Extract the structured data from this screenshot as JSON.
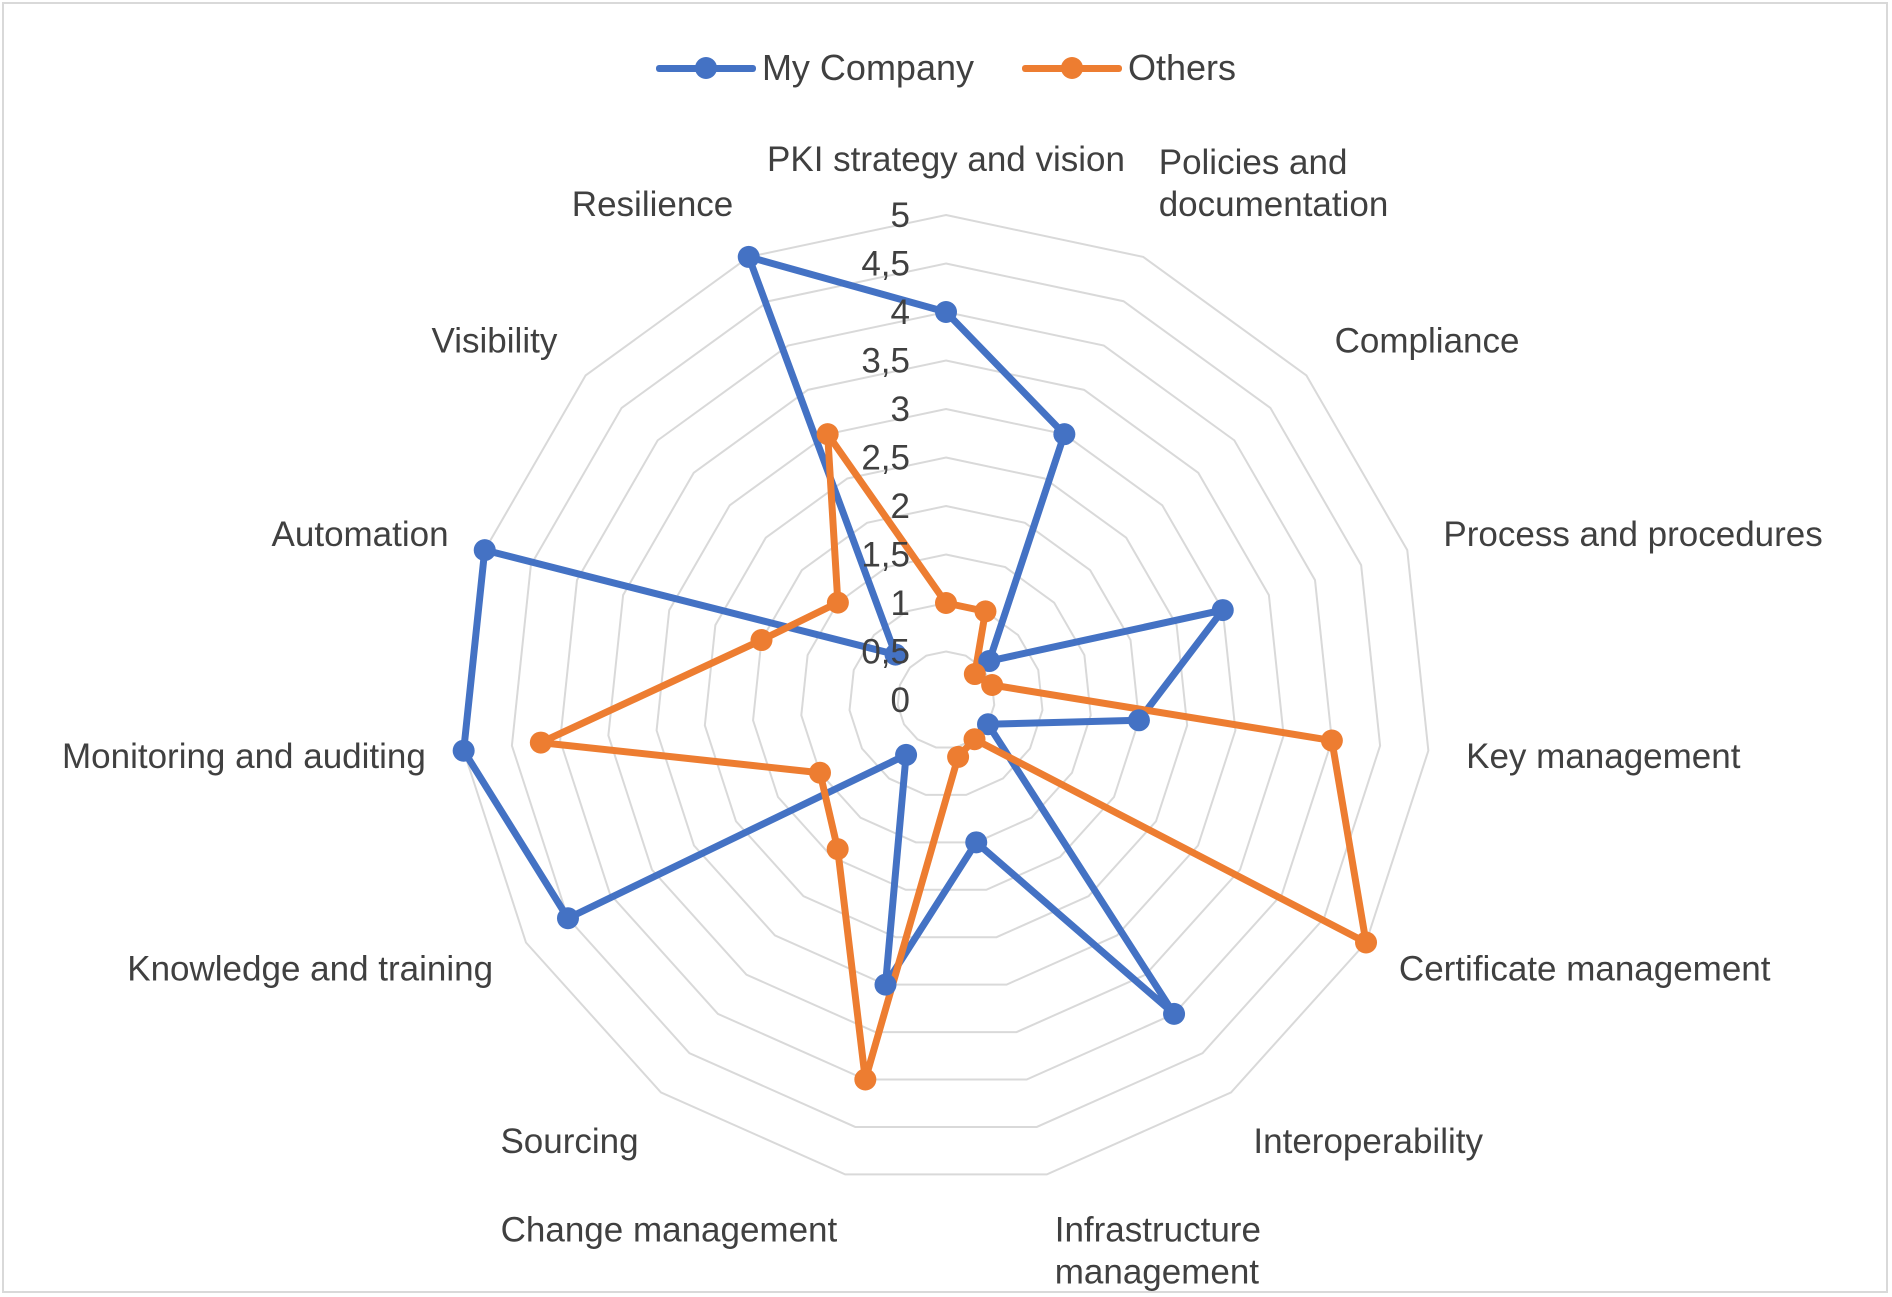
{
  "chart_data": {
    "type": "radar",
    "title": "",
    "categories": [
      "PKI strategy and vision",
      "Policies and documentation",
      "Compliance",
      "Process and procedures",
      "Key management",
      "Certificate management",
      "Interoperability",
      "Infrastructure management",
      "Change management",
      "Sourcing",
      "Knowledge and training",
      "Monitoring and auditing",
      "Automation",
      "Visibility",
      "Resilience"
    ],
    "category_label_lines": [
      [
        "PKI strategy and vision"
      ],
      [
        "Policies and",
        "documentation"
      ],
      [
        "Compliance"
      ],
      [
        "Process and procedures"
      ],
      [
        "Key management"
      ],
      [
        "Certificate management"
      ],
      [
        "Interoperability"
      ],
      [
        "Infrastructure",
        "management"
      ],
      [
        "Change management"
      ],
      [
        "Sourcing"
      ],
      [
        "Knowledge and training"
      ],
      [
        "Monitoring and auditing"
      ],
      [
        "Automation"
      ],
      [
        "Visibility"
      ],
      [
        "Resilience"
      ]
    ],
    "series": [
      {
        "name": "My Company",
        "color": "#4472c4",
        "values": [
          4.0,
          3.0,
          0.6,
          3.0,
          2.0,
          0.5,
          4.0,
          1.5,
          3.0,
          0.7,
          4.5,
          5.0,
          5.0,
          0.7,
          5.0
        ]
      },
      {
        "name": "Others",
        "color": "#ed7d31",
        "values": [
          1.0,
          1.0,
          0.4,
          0.5,
          4.0,
          5.0,
          0.5,
          0.6,
          4.0,
          1.9,
          1.5,
          4.2,
          2.0,
          1.5,
          3.0
        ]
      }
    ],
    "rlim": [
      0,
      5
    ],
    "ticks": [
      "0",
      "0,5",
      "1",
      "1,5",
      "2",
      "2,5",
      "3",
      "3,5",
      "4",
      "4,5",
      "5"
    ],
    "grid": true,
    "legend": "top"
  }
}
